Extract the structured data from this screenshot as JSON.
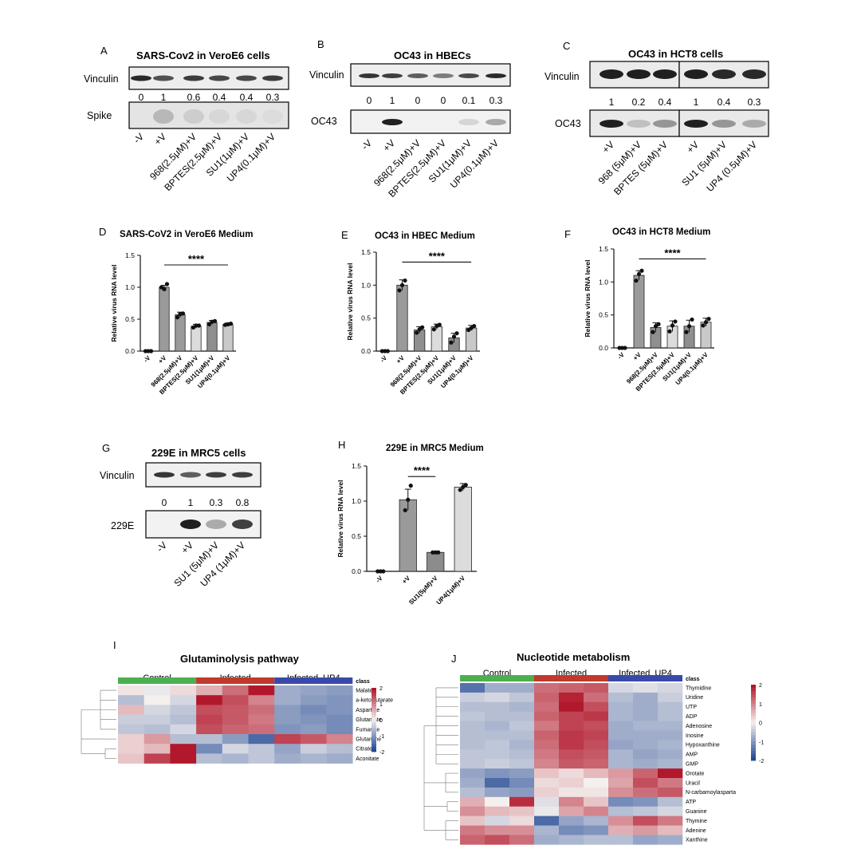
{
  "blots": [
    {
      "id": "A",
      "letter": "A",
      "title": "SARS-Cov2 in VeroE6 cells",
      "rows": [
        "Vinculin",
        "Spike"
      ],
      "quant": [
        "0",
        "1",
        "0.6",
        "0.4",
        "0.4",
        "0.3"
      ],
      "lanes": [
        "-V",
        "+V",
        "968(2.5μM)+V",
        "BPTES(2.5μM)+V",
        "SU1(1μM)+V",
        "UP4(0.1μM)+V"
      ]
    },
    {
      "id": "B",
      "letter": "B",
      "title": "OC43 in HBECs",
      "rows": [
        "Vinculin",
        "OC43"
      ],
      "quant": [
        "0",
        "1",
        "0",
        "0",
        "0.1",
        "0.3"
      ],
      "lanes": [
        "-V",
        "+V",
        "968(2.5μM)+V",
        "BPTES(2.5μM)+V",
        "SU1(1μM)+V",
        "UP4(0.1μM)+V"
      ]
    },
    {
      "id": "C",
      "letter": "C",
      "title": "OC43 in HCT8 cells",
      "rows": [
        "Vinculin",
        "OC43"
      ],
      "quant": [
        "1",
        "0.2",
        "0.4",
        "1",
        "0.4",
        "0.3"
      ],
      "lanes": [
        "+V",
        "968 (5μM)+V",
        "BPTES (5μM)+V",
        "+V",
        "SU1 (5μM)+V",
        "UP4 (0.5μM)+V"
      ]
    },
    {
      "id": "G",
      "letter": "G",
      "title": "229E in MRC5 cells",
      "rows": [
        "Vinculin",
        "229E"
      ],
      "quant": [
        "0",
        "1",
        "0.3",
        "0.8"
      ],
      "lanes": [
        "-V",
        "+V",
        "SU1 (5μM)+V",
        "UP4 (1μM)+V"
      ]
    }
  ],
  "chart_data": [
    {
      "id": "D",
      "type": "bar",
      "letter": "D",
      "title": "SARS-CoV2 in VeroE6 Medium",
      "ylabel": "Relative virus RNA level",
      "ylim": [
        0,
        1.5
      ],
      "yticks": [
        "0.0",
        "0.5",
        "1.0",
        "1.5"
      ],
      "categories": [
        "-V",
        "+V",
        "968(2.5μM)+V",
        "BPTES(2.5μM)+V",
        "SU1(1μM)+V",
        "UP4(0.1μM)+V"
      ],
      "values": [
        0,
        1.0,
        0.57,
        0.39,
        0.45,
        0.42
      ],
      "errors": [
        0,
        0.03,
        0.04,
        0.03,
        0.03,
        0.02
      ],
      "points": [
        [
          0,
          0,
          0
        ],
        [
          1.0,
          0.97,
          1.05
        ],
        [
          0.53,
          0.58,
          0.59
        ],
        [
          0.37,
          0.4,
          0.4
        ],
        [
          0.42,
          0.46,
          0.47
        ],
        [
          0.41,
          0.42,
          0.43
        ]
      ],
      "fills": [
        "#9a9a9a",
        "#9a9a9a",
        "#9a9a9a",
        "#dcdcdc",
        "#8f8f8f",
        "#c9c9c9"
      ],
      "significance": "****",
      "sig_span": [
        1,
        5
      ]
    },
    {
      "id": "E",
      "type": "bar",
      "letter": "E",
      "title": "OC43 in HBEC Medium",
      "ylabel": "Relative virus RNA level",
      "ylim": [
        0,
        1.5
      ],
      "yticks": [
        "0.0",
        "0.5",
        "1.0",
        "1.5"
      ],
      "categories": [
        "-V",
        "+V",
        "968(2.5μM)+V",
        "BPTES(2.5μM)+V",
        "SU1(1μM)+V",
        "UP4(0.1μM)+V"
      ],
      "values": [
        0,
        1.0,
        0.32,
        0.37,
        0.2,
        0.35
      ],
      "errors": [
        0,
        0.08,
        0.05,
        0.04,
        0.07,
        0.04
      ],
      "points": [
        [
          0,
          0,
          0
        ],
        [
          0.92,
          1.0,
          1.07
        ],
        [
          0.28,
          0.33,
          0.36
        ],
        [
          0.33,
          0.38,
          0.4
        ],
        [
          0.13,
          0.22,
          0.27
        ],
        [
          0.32,
          0.35,
          0.38
        ]
      ],
      "fills": [
        "#9a9a9a",
        "#9a9a9a",
        "#8f8f8f",
        "#dcdcdc",
        "#8f8f8f",
        "#c9c9c9"
      ],
      "significance": "****",
      "sig_span": [
        1,
        5
      ]
    },
    {
      "id": "F",
      "type": "bar",
      "letter": "F",
      "title": "OC43 in HCT8 Medium",
      "ylabel": "Relative virus RNA level",
      "ylim": [
        0,
        1.5
      ],
      "yticks": [
        "0.0",
        "0.5",
        "1.0",
        "1.5"
      ],
      "categories": [
        "-V",
        "+V",
        "968(2.5μM)+V",
        "BPTES(2.5μM)+V",
        "SU1(1μM)+V",
        "UP4(0.1μM)+V"
      ],
      "values": [
        0,
        1.1,
        0.31,
        0.33,
        0.33,
        0.39
      ],
      "errors": [
        0,
        0.07,
        0.07,
        0.08,
        0.09,
        0.06
      ],
      "points": [
        [
          0,
          0,
          0
        ],
        [
          1.02,
          1.12,
          1.17
        ],
        [
          0.24,
          0.33,
          0.36
        ],
        [
          0.25,
          0.34,
          0.4
        ],
        [
          0.24,
          0.33,
          0.43
        ],
        [
          0.34,
          0.39,
          0.44
        ]
      ],
      "fills": [
        "#9a9a9a",
        "#9a9a9a",
        "#8f8f8f",
        "#dcdcdc",
        "#8f8f8f",
        "#c9c9c9"
      ],
      "significance": "****",
      "sig_span": [
        1,
        5
      ]
    },
    {
      "id": "H",
      "type": "bar",
      "letter": "H",
      "title": "229E in MRC5 Medium",
      "ylabel": "Relative virus RNA level",
      "ylim": [
        0,
        1.5
      ],
      "yticks": [
        "0.0",
        "0.5",
        "1.0",
        "1.5"
      ],
      "categories": [
        "-V",
        "+V",
        "SU1(5μM)+V",
        "UP4(1μM)+V"
      ],
      "values": [
        0,
        1.02,
        0.27,
        1.2
      ],
      "errors": [
        0,
        0.15,
        0.01,
        0.05
      ],
      "points": [
        [
          0,
          0,
          0
        ],
        [
          0.87,
          1.02,
          1.22
        ],
        [
          0.27,
          0.27,
          0.27
        ],
        [
          1.16,
          1.2,
          1.23
        ]
      ],
      "fills": [
        "#9a9a9a",
        "#9a9a9a",
        "#8c8c8c",
        "#dcdcdc"
      ],
      "significance": "****",
      "sig_span": [
        1,
        2
      ]
    },
    {
      "id": "I",
      "type": "heatmap",
      "letter": "I",
      "title": "Glutaminolysis pathway",
      "groups": [
        "Control",
        "Infected",
        "Infected_UP4"
      ],
      "group_colors": [
        "#4caf50",
        "#c0392b",
        "#3949ab"
      ],
      "class_label": "class",
      "rows": [
        "Malate",
        "a-ketoglutarate",
        "Aspartate",
        "Glutamate",
        "Fumarate",
        "Glutamine",
        "Citrate",
        "Aconitate"
      ],
      "values": [
        [
          0.1,
          -0.1,
          0.2,
          0.6,
          1.2,
          2.2,
          -0.8,
          -0.9,
          -1.0
        ],
        [
          -0.6,
          0.0,
          -0.3,
          2.0,
          1.5,
          1.0,
          -0.8,
          -1.0,
          -1.1
        ],
        [
          0.5,
          -0.3,
          -0.5,
          1.5,
          1.4,
          1.2,
          -1.0,
          -1.2,
          -1.1
        ],
        [
          -0.4,
          -0.4,
          -0.6,
          1.6,
          1.4,
          1.1,
          -1.0,
          -1.1,
          -1.2
        ],
        [
          -0.5,
          -0.6,
          -0.3,
          1.5,
          1.3,
          1.2,
          -1.1,
          -1.0,
          -1.2
        ],
        [
          0.3,
          0.8,
          -0.6,
          -0.6,
          -1.0,
          -1.6,
          1.6,
          1.4,
          1.0
        ],
        [
          0.3,
          0.5,
          2.4,
          -1.2,
          -0.3,
          -0.5,
          -0.9,
          -0.4,
          -0.6
        ],
        [
          0.4,
          1.6,
          2.0,
          -0.6,
          -0.7,
          -0.5,
          -0.8,
          -0.7,
          -0.8
        ]
      ],
      "colorbar": [
        "2",
        "1",
        "0",
        "-1",
        "-2"
      ]
    },
    {
      "id": "J",
      "type": "heatmap",
      "letter": "J",
      "title": "Nucleotide metabolism",
      "groups": [
        "Control",
        "Infected",
        "Infected_UP4"
      ],
      "group_colors": [
        "#4caf50",
        "#c0392b",
        "#3949ab"
      ],
      "class_label": "class",
      "rows": [
        "Thymidine",
        "Uridine",
        "UTP",
        "ADP",
        "Adenosine",
        "Inosine",
        "Hypoxanthine",
        "AMP",
        "GMP",
        "Orotate",
        "Uracil",
        "N-carbamoylasparta",
        "ATP",
        "Guanine",
        "Thymine",
        "Adenine",
        "Xanthine"
      ],
      "values": [
        [
          -1.5,
          -0.8,
          -0.8,
          1.2,
          1.3,
          1.4,
          -0.3,
          -0.2,
          -0.3
        ],
        [
          -0.4,
          -0.3,
          -0.5,
          1.3,
          1.9,
          1.2,
          -0.6,
          -0.8,
          -0.4
        ],
        [
          -0.6,
          -0.6,
          -0.7,
          1.2,
          2.1,
          1.5,
          -0.7,
          -0.8,
          -0.6
        ],
        [
          -0.5,
          -0.6,
          -0.6,
          1.3,
          1.6,
          1.7,
          -0.7,
          -0.8,
          -0.6
        ],
        [
          -0.6,
          -0.7,
          -0.5,
          1.1,
          1.6,
          1.5,
          -0.8,
          -0.7,
          -0.7
        ],
        [
          -0.6,
          -0.6,
          -0.6,
          1.3,
          1.7,
          1.6,
          -0.8,
          -0.8,
          -0.8
        ],
        [
          -0.6,
          -0.5,
          -0.7,
          1.2,
          1.7,
          1.5,
          -0.9,
          -0.8,
          -0.7
        ],
        [
          -0.5,
          -0.5,
          -0.6,
          1.1,
          1.5,
          1.4,
          -0.7,
          -0.9,
          -0.8
        ],
        [
          -0.5,
          -0.4,
          -0.5,
          1.0,
          1.4,
          1.3,
          -0.7,
          -0.8,
          -0.7
        ],
        [
          -0.9,
          -1.1,
          -1.0,
          0.4,
          0.2,
          0.5,
          0.8,
          1.3,
          2.0
        ],
        [
          -0.8,
          -1.6,
          -1.2,
          0.2,
          0.3,
          0.0,
          0.7,
          1.5,
          1.1
        ],
        [
          -0.6,
          -0.9,
          -1.0,
          0.3,
          0.1,
          0.1,
          0.9,
          1.2,
          1.4
        ],
        [
          0.6,
          0.0,
          1.8,
          -0.2,
          1.0,
          0.4,
          -1.2,
          -1.1,
          -0.6
        ],
        [
          0.9,
          0.5,
          0.4,
          -0.1,
          0.7,
          1.0,
          -0.6,
          -0.5,
          -0.3
        ],
        [
          0.4,
          -0.3,
          0.2,
          -1.6,
          -0.9,
          -0.7,
          0.9,
          1.5,
          1.1
        ],
        [
          1.1,
          0.9,
          0.9,
          -0.7,
          -1.2,
          -1.1,
          0.6,
          0.8,
          0.5
        ],
        [
          1.3,
          1.5,
          1.2,
          -0.8,
          -0.7,
          -0.6,
          -0.6,
          -0.9,
          -0.8
        ]
      ],
      "colorbar": [
        "2",
        "1",
        "0",
        "-1",
        "-2"
      ]
    }
  ]
}
